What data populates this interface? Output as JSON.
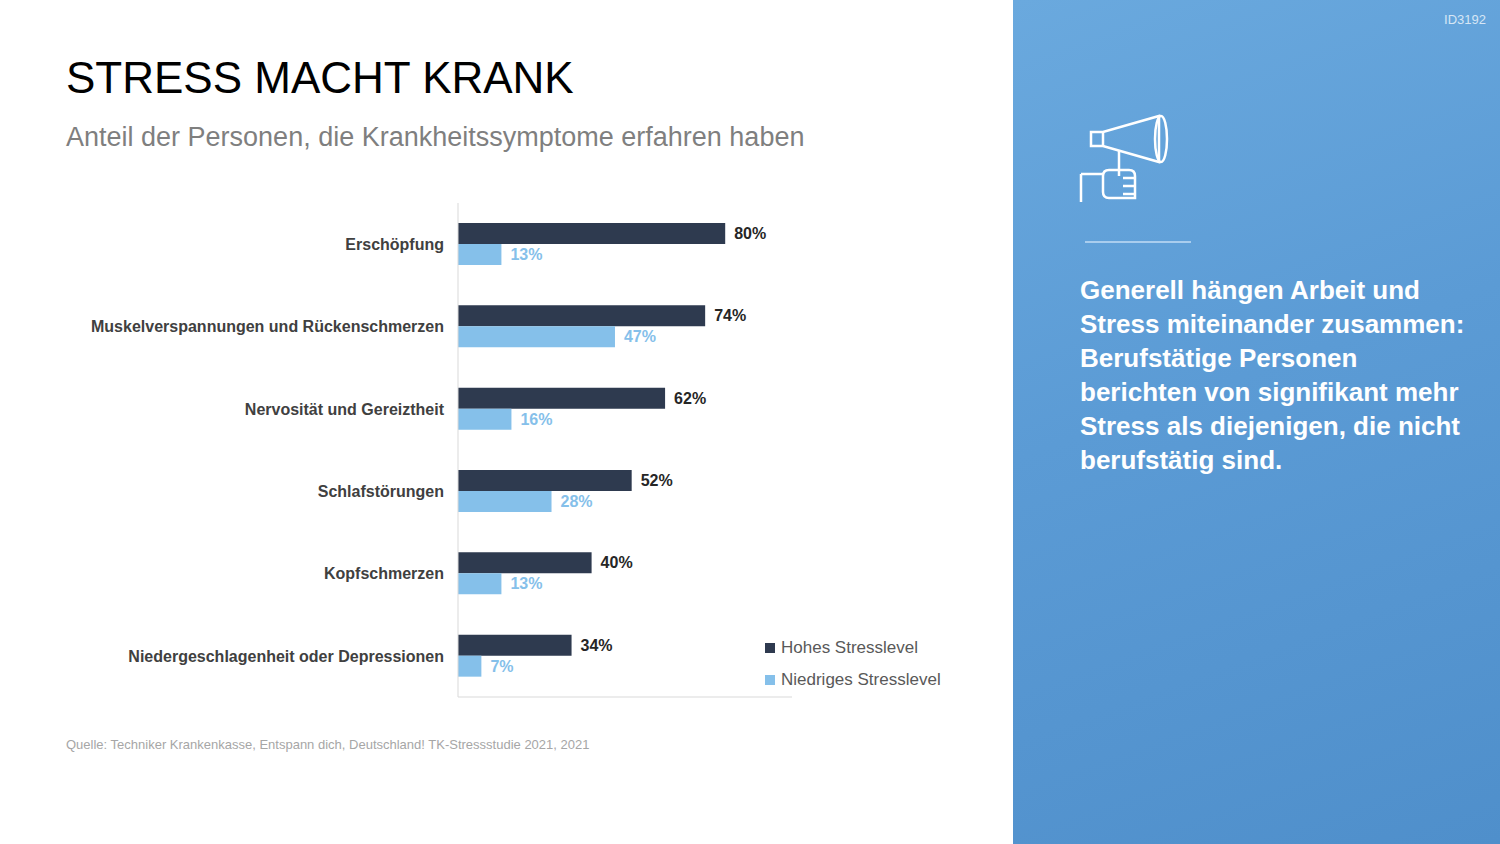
{
  "chart_data": {
    "type": "bar",
    "orientation": "horizontal",
    "title": "STRESS MACHT KRANK",
    "subtitle": "Anteil der Personen, die Krankheitssymptome erfahren haben",
    "categories": [
      "Erschöpfung",
      "Muskelverspannungen und Rückenschmerzen",
      "Nervosität und Gereiztheit",
      "Schlafstörungen",
      "Kopfschmerzen",
      "Niedergeschlagenheit oder Depressionen"
    ],
    "series": [
      {
        "name": "Hohes Stresslevel",
        "color": "#2e3a4f",
        "values": [
          80,
          74,
          62,
          52,
          40,
          34
        ],
        "value_labels": [
          "80%",
          "74%",
          "62%",
          "52%",
          "40%",
          "34%"
        ]
      },
      {
        "name": "Niedriges Stresslevel",
        "color": "#85c0ea",
        "values": [
          13,
          47,
          16,
          28,
          13,
          7
        ],
        "value_labels": [
          "13%",
          "47%",
          "16%",
          "28%",
          "13%",
          "7%"
        ]
      }
    ],
    "xlim": [
      0,
      100
    ],
    "tick_labels": "y",
    "data_labels": true,
    "grid": false,
    "legend": "lower right",
    "source": "Quelle: Techniker Krankenkasse, Entspann dich, Deutschland! TK-Stressstudie 2021, 2021",
    "annotations": [
      "Generell hängen Arbeit und Stress miteinander zusammen: Berufstätige Personen berichten von signifikant mehr Stress als diejenigen, die nicht berufstätig sind.",
      "ID3192"
    ]
  }
}
